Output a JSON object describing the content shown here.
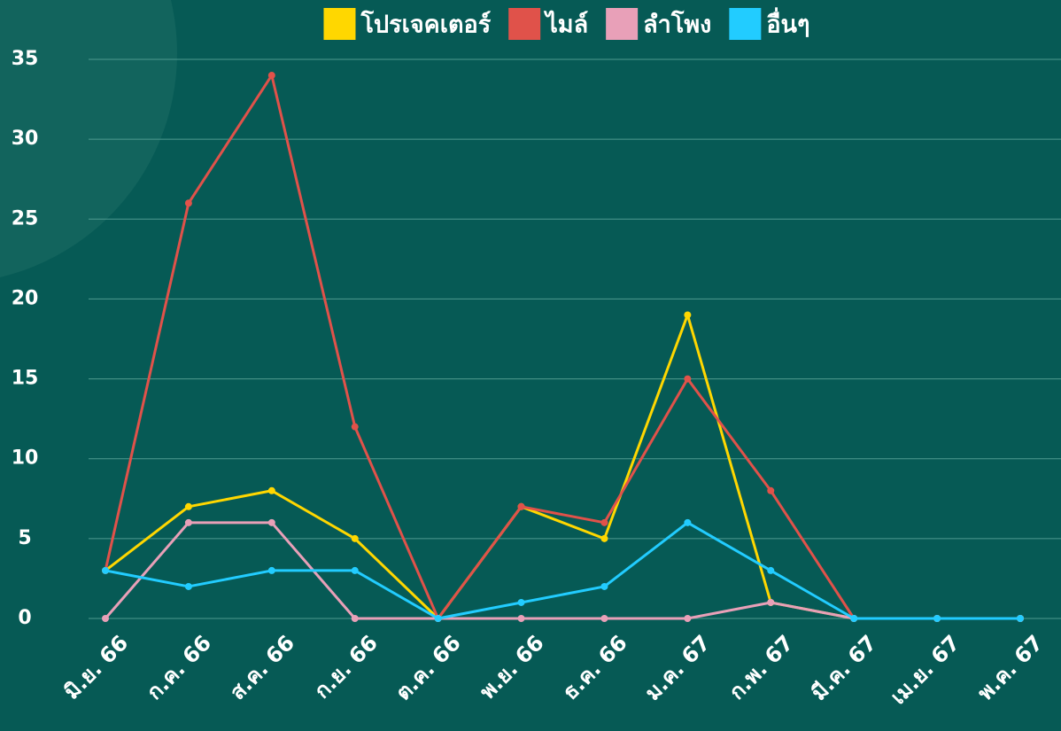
{
  "chart_data": {
    "type": "line",
    "categories": [
      "มิ.ย. 66",
      "ก.ค. 66",
      "ส.ค. 66",
      "ก.ย. 66",
      "ต.ค. 66",
      "พ.ย. 66",
      "ธ.ค. 66",
      "ม.ค. 67",
      "ก.พ. 67",
      "มี.ค. 67",
      "เม.ย. 67",
      "พ.ค. 67"
    ],
    "series": [
      {
        "name": "โปรเจคเตอร์",
        "color": "#ffd700",
        "values": [
          3,
          7,
          8,
          5,
          0,
          7,
          5,
          19,
          1,
          0,
          0,
          0
        ]
      },
      {
        "name": "ไมล์",
        "color": "#e0524a",
        "values": [
          3,
          26,
          34,
          12,
          0,
          7,
          6,
          15,
          8,
          0,
          0,
          0
        ]
      },
      {
        "name": "ลำโพง",
        "color": "#e8a0b8",
        "values": [
          0,
          6,
          6,
          0,
          0,
          0,
          0,
          0,
          1,
          0,
          0,
          0
        ]
      },
      {
        "name": "อื่นๆ",
        "color": "#22ccff",
        "values": [
          3,
          2,
          3,
          3,
          0,
          1,
          2,
          6,
          3,
          0,
          0,
          0
        ]
      }
    ],
    "ylim": [
      0,
      35
    ],
    "yticks": [
      0,
      5,
      10,
      15,
      20,
      25,
      30,
      35
    ],
    "grid": true,
    "legend": "top"
  }
}
